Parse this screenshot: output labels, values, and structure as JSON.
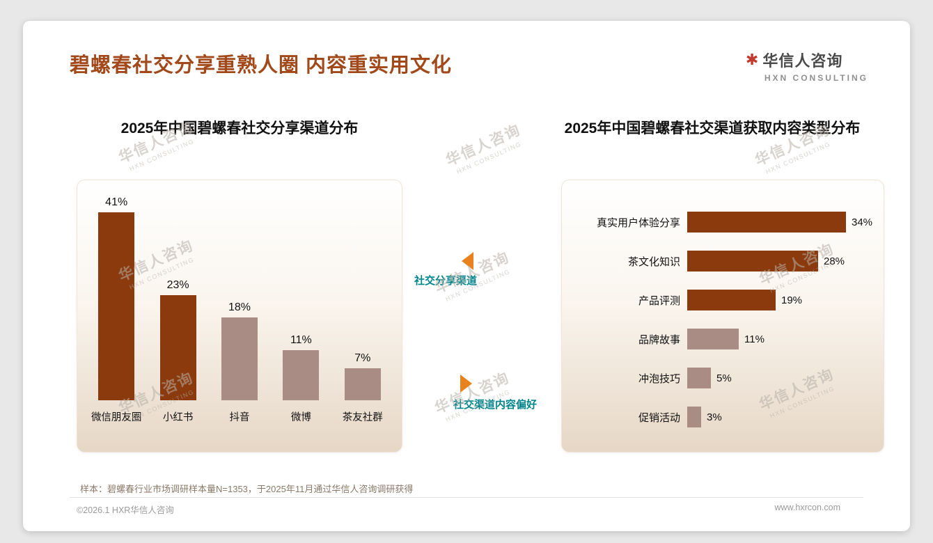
{
  "page": {
    "title": "碧螺春社交分享重熟人圈 内容重实用文化",
    "sample_note": "样本：碧螺春行业市场调研样本量N=1353，于2025年11月通过华信人咨询调研获得",
    "footer_left": "©2026.1 HXR华信人咨询",
    "footer_right": "www.hxrcon.com"
  },
  "logo": {
    "icon": "✱",
    "name_cn": "华信人咨询",
    "name_en": "HXN CONSULTING"
  },
  "annotations": {
    "left_marker_label": "社交分享渠道",
    "right_marker_label": "社交渠道内容偏好"
  },
  "watermark": {
    "text_cn": "华信人咨询",
    "text_en": "HXN CONSULTING"
  },
  "colors": {
    "title_brown": "#a2491c",
    "bar_dark": "#8b3a0d",
    "bar_light": "#a98d84",
    "marker_orange": "#e8821e",
    "label_teal": "#00858c",
    "logo_red": "#c23a30"
  },
  "chart_data": [
    {
      "type": "bar",
      "orientation": "vertical",
      "title": "2025年中国碧螺春社交分享渠道分布",
      "categories": [
        "微信朋友圈",
        "小红书",
        "抖音",
        "微博",
        "茶友社群"
      ],
      "values": [
        41,
        23,
        18,
        11,
        7
      ],
      "value_suffix": "%",
      "bar_colors": [
        "dark",
        "dark",
        "light",
        "light",
        "light"
      ],
      "ylim": [
        0,
        45
      ],
      "grid": false,
      "legend": false
    },
    {
      "type": "bar",
      "orientation": "horizontal",
      "title": "2025年中国碧螺春社交渠道获取内容类型分布",
      "categories": [
        "真实用户体验分享",
        "茶文化知识",
        "产品评测",
        "品牌故事",
        "冲泡技巧",
        "促销活动"
      ],
      "values": [
        34,
        28,
        19,
        11,
        5,
        3
      ],
      "value_suffix": "%",
      "bar_colors": [
        "dark",
        "dark",
        "dark",
        "light",
        "light",
        "light"
      ],
      "xlim": [
        0,
        40
      ],
      "grid": false,
      "legend": false
    }
  ]
}
